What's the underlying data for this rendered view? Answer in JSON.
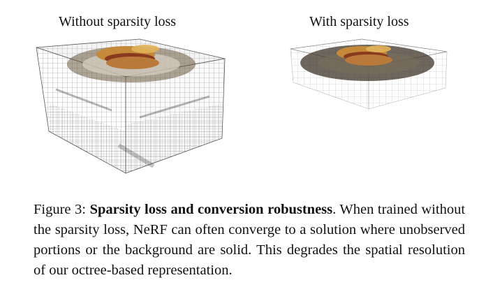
{
  "panels": {
    "left_title": "Without sparsity loss",
    "right_title": "With sparsity loss"
  },
  "caption": {
    "label": "Figure 3:",
    "bold": "Sparsity loss and conversion robustness",
    "text": ". When trained without the sparsity loss, NeRF can often converge to a solution where unobserved portions or the background are solid. This degrades the spatial resolution of our octree-based representation."
  },
  "colors": {
    "grid": "#666666",
    "bun": "#c48a3a",
    "sausage": "#8a3a1e",
    "plate": "#6b5a40"
  }
}
